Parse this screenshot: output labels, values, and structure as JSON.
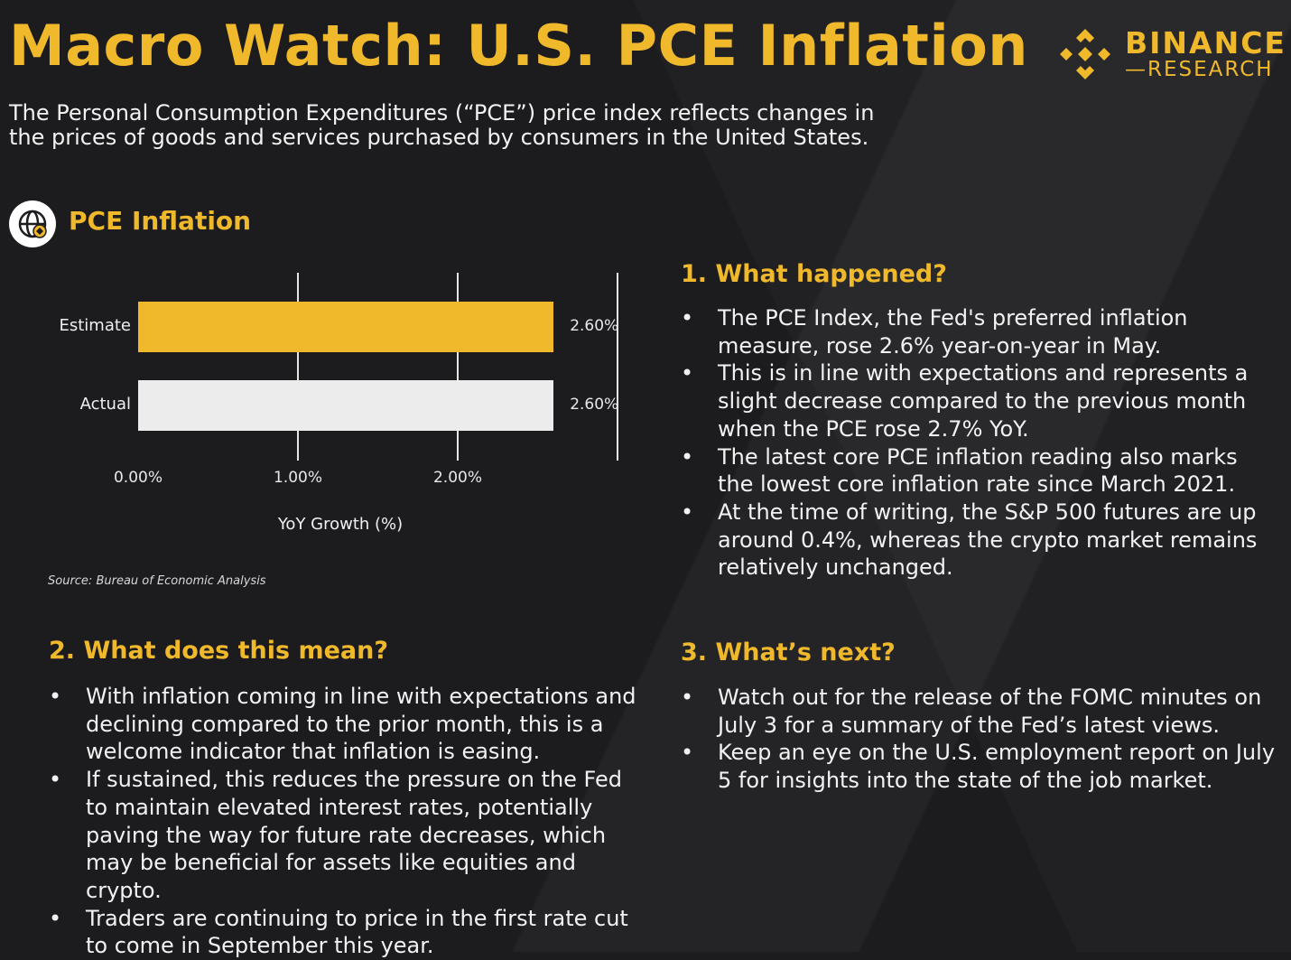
{
  "header": {
    "title": "Macro Watch: U.S. PCE Inflation",
    "intro": "The Personal Consumption Expenditures (“PCE”) price index reflects changes in the prices of goods and services purchased by consumers in the United States."
  },
  "logo": {
    "word1": "BINANCE",
    "word2": "—RESEARCH",
    "icon": "binance-diamond-icon"
  },
  "section_chart": {
    "icon": "globe-icon",
    "label": "PCE Inflation"
  },
  "chart_data": {
    "type": "bar",
    "orientation": "horizontal",
    "categories": [
      "Estimate",
      "Actual"
    ],
    "values": [
      2.6,
      2.6
    ],
    "value_labels": [
      "2.60%",
      "2.60%"
    ],
    "bar_colors": [
      "#f0b92c",
      "#ececec"
    ],
    "xlabel": "YoY Growth (%)",
    "x_ticks": [
      "0.00%",
      "1.00%",
      "2.00%"
    ],
    "xlim": [
      0,
      3
    ],
    "grid": true
  },
  "source": "Source: Bureau of Economic Analysis",
  "sections": {
    "what_happened": {
      "heading": "1. What happened?",
      "bullets": [
        "The PCE Index, the Fed's preferred inflation measure, rose 2.6% year-on-year in May.",
        "This is in line with expectations and represents a slight decrease compared to the previous month when the PCE rose 2.7% YoY.",
        "The latest core PCE inflation reading also marks the lowest core inflation rate since March 2021.",
        "At the time of writing, the S&P 500 futures are up around 0.4%, whereas the crypto market remains relatively unchanged."
      ]
    },
    "what_mean": {
      "heading": "2. What does this mean?",
      "bullets": [
        "With inflation coming in line with expectations and declining compared to the prior month, this is a welcome indicator that inflation is easing.",
        "If sustained, this reduces the pressure on the Fed to maintain elevated interest rates, potentially paving the way for future rate decreases, which may be beneficial for assets like equities and crypto.",
        "Traders are continuing to price in the first rate cut to come in September this year."
      ]
    },
    "whats_next": {
      "heading": "3. What’s next?",
      "bullets": [
        "Watch out for the release of the FOMC minutes on July 3 for a summary of the Fed’s latest views.",
        "Keep an eye on the U.S. employment report on July 5 for insights into the state of the job market."
      ]
    }
  },
  "colors": {
    "accent": "#f0b92c",
    "background": "#1c1c1f",
    "text": "#f2f2f2"
  }
}
